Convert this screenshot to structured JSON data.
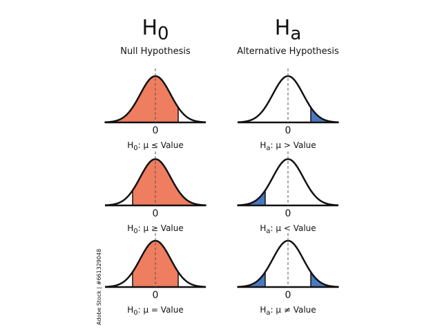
{
  "columns": [
    {
      "symbol": "H",
      "subscript": "0",
      "label": "Null Hypothesis",
      "panels": [
        {
          "axis_label": "0",
          "formula": {
            "symbol": "H",
            "subscript": "0",
            "text": ": μ ≤ Value"
          }
        },
        {
          "axis_label": "0",
          "formula": {
            "symbol": "H",
            "subscript": "0",
            "text": ": μ ≥ Value"
          }
        },
        {
          "axis_label": "0",
          "formula": {
            "symbol": "H",
            "subscript": "0",
            "text": ": μ = Value"
          }
        }
      ]
    },
    {
      "symbol": "H",
      "subscript": "a",
      "label": "Alternative Hypothesis",
      "panels": [
        {
          "axis_label": "0",
          "formula": {
            "symbol": "H",
            "subscript": "a",
            "text": ": μ > Value"
          }
        },
        {
          "axis_label": "0",
          "formula": {
            "symbol": "H",
            "subscript": "a",
            "text": ": μ < Value"
          }
        },
        {
          "axis_label": "0",
          "formula": {
            "symbol": "H",
            "subscript": "a",
            "text": ": μ ≠ Value"
          }
        }
      ]
    }
  ],
  "watermark": "Adobe Stock | #661329048"
}
